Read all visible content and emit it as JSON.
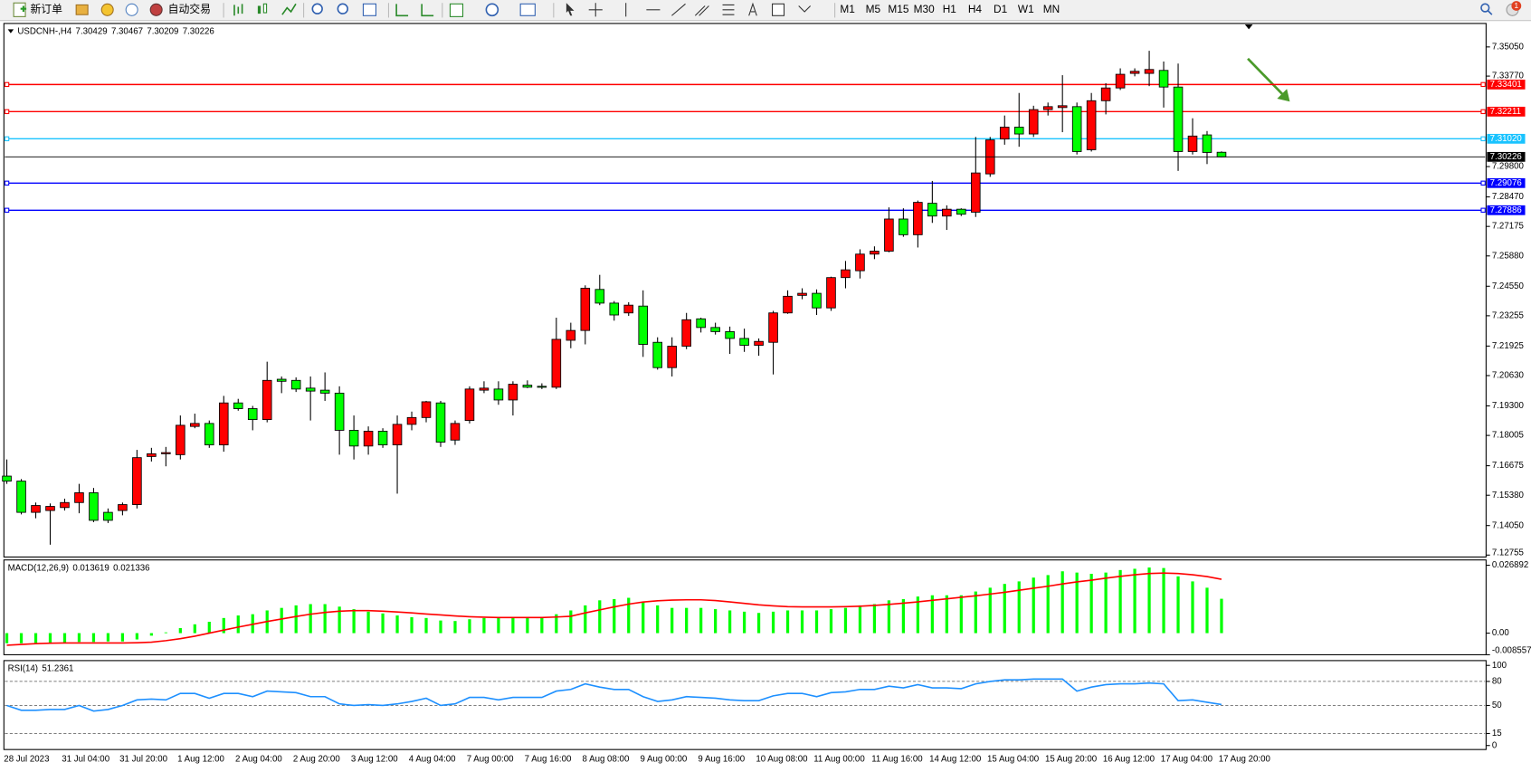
{
  "toolbar": {
    "new_order": "新订单",
    "auto_trading": "自动交易",
    "timeframes": [
      "M1",
      "M5",
      "M15",
      "M30",
      "H1",
      "H4",
      "D1",
      "W1",
      "MN"
    ],
    "notifications": 1
  },
  "chart_data": [
    {
      "type": "candlestick",
      "title": "USDCNH-,H4",
      "up_color": "#ff0000",
      "down_color": "#00ff00",
      "categories": [
        "28 Jul 2023",
        null,
        null,
        null,
        "31 Jul 04:00",
        null,
        null,
        null,
        "31 Jul 20:00",
        null,
        null,
        null,
        "1 Aug 12:00",
        null,
        null,
        null,
        "2 Aug 04:00",
        null,
        null,
        null,
        "2 Aug 20:00",
        null,
        null,
        null,
        "3 Aug 12:00",
        null,
        null,
        null,
        "4 Aug 04:00",
        null,
        null,
        null,
        "7 Aug 00:00",
        null,
        null,
        null,
        "7 Aug 16:00",
        null,
        null,
        null,
        "8 Aug 08:00",
        null,
        null,
        null,
        "9 Aug 00:00",
        null,
        null,
        null,
        "9 Aug 16:00",
        null,
        null,
        null,
        "10 Aug 08:00",
        null,
        null,
        null,
        "11 Aug 00:00",
        null,
        null,
        null,
        "11 Aug 16:00",
        null,
        null,
        null,
        "14 Aug 12:00",
        null,
        null,
        null,
        "15 Aug 04:00",
        null,
        null,
        null,
        "15 Aug 20:00",
        null,
        null,
        null,
        "16 Aug 12:00",
        null,
        null,
        null,
        "17 Aug 04:00",
        null,
        null,
        null,
        "17 Aug 20:00"
      ],
      "open": [
        7.1622,
        7.16,
        7.1463,
        7.1471,
        7.1484,
        7.1506,
        7.1549,
        7.1463,
        7.1471,
        7.1497,
        7.1708,
        7.172,
        7.1716,
        7.184,
        7.1853,
        7.1759,
        7.1943,
        7.1918,
        7.187,
        7.2047,
        7.2042,
        7.2008,
        7.1999,
        7.1986,
        7.1823,
        7.1754,
        7.1819,
        7.1759,
        7.1849,
        7.1879,
        7.1943,
        7.178,
        7.1866,
        7.1999,
        7.2004,
        7.1956,
        7.2021,
        7.2016,
        7.2012,
        7.2218,
        7.2261,
        7.2441,
        7.2381,
        7.2338,
        7.2368,
        7.2209,
        7.2098,
        7.2192,
        7.2312,
        7.2274,
        7.2256,
        7.2226,
        7.2196,
        7.2209,
        7.2338,
        7.2415,
        7.2424,
        7.236,
        7.2493,
        7.2523,
        7.2596,
        7.2609,
        7.275,
        7.2681,
        7.2819,
        7.2763,
        7.2793,
        7.278,
        7.2948,
        7.3101,
        7.3153,
        7.3123,
        7.323,
        7.3239,
        7.3243,
        7.3054,
        7.3269,
        7.3325,
        7.3389,
        7.3389,
        7.3402,
        7.3329,
        7.3046,
        7.3119,
        7.30429
      ],
      "high": [
        7.1695,
        7.1609,
        7.1506,
        7.1502,
        7.1523,
        7.1588,
        7.157,
        7.148,
        7.1506,
        7.1737,
        7.1746,
        7.175,
        7.1888,
        7.1896,
        7.1866,
        7.1974,
        7.1961,
        7.193,
        7.2124,
        7.2059,
        7.2055,
        7.2059,
        7.2077,
        7.2016,
        7.1888,
        7.184,
        7.1832,
        7.1888,
        7.1905,
        7.1952,
        7.1952,
        7.1866,
        7.2016,
        7.2038,
        7.2038,
        7.2038,
        7.2042,
        7.2029,
        7.2317,
        7.2295,
        7.2459,
        7.2505,
        7.239,
        7.2385,
        7.2437,
        7.2231,
        7.2231,
        7.2338,
        7.2317,
        7.2295,
        7.2278,
        7.2269,
        7.2226,
        7.2347,
        7.2437,
        7.2446,
        7.2441,
        7.2497,
        7.2566,
        7.2617,
        7.263,
        7.2801,
        7.2797,
        7.2831,
        7.2917,
        7.281,
        7.2797,
        7.311,
        7.311,
        7.3204,
        7.3303,
        7.3247,
        7.3261,
        7.3381,
        7.3261,
        7.3303,
        7.3346,
        7.3411,
        7.3411,
        7.3488,
        7.3441,
        7.3432,
        7.3192,
        7.3136,
        7.30467
      ],
      "low": [
        7.1588,
        7.1454,
        7.1437,
        7.1321,
        7.1471,
        7.1459,
        7.142,
        7.1416,
        7.145,
        7.148,
        7.1686,
        7.1665,
        7.1695,
        7.1832,
        7.1746,
        7.1729,
        7.1909,
        7.1823,
        7.1858,
        7.1986,
        7.1991,
        7.1866,
        7.1952,
        7.1716,
        7.1695,
        7.1716,
        7.1746,
        7.1545,
        7.1823,
        7.1858,
        7.175,
        7.1759,
        7.1853,
        7.1986,
        7.1935,
        7.1888,
        7.2008,
        7.2004,
        7.2004,
        7.2183,
        7.22,
        7.2372,
        7.2304,
        7.2325,
        7.2145,
        7.2089,
        7.2059,
        7.2179,
        7.2252,
        7.2243,
        7.2158,
        7.2167,
        7.215,
        7.2068,
        7.2334,
        7.2398,
        7.2329,
        7.2347,
        7.2446,
        7.2489,
        7.2574,
        7.2604,
        7.2672,
        7.2625,
        7.2733,
        7.2702,
        7.2763,
        7.2759,
        7.2935,
        7.3076,
        7.3067,
        7.311,
        7.3204,
        7.3131,
        7.3033,
        7.3046,
        7.3209,
        7.3316,
        7.3376,
        7.3333,
        7.3239,
        7.2961,
        7.3033,
        7.2991,
        7.30209
      ],
      "close": [
        7.16,
        7.1463,
        7.1493,
        7.1489,
        7.1506,
        7.1549,
        7.1428,
        7.1428,
        7.1497,
        7.1703,
        7.172,
        7.1725,
        7.1845,
        7.1853,
        7.1759,
        7.1943,
        7.1918,
        7.187,
        7.2042,
        7.2038,
        7.2004,
        7.1995,
        7.1986,
        7.1823,
        7.1754,
        7.1819,
        7.1759,
        7.1849,
        7.1879,
        7.1948,
        7.1771,
        7.1853,
        7.2004,
        7.2008,
        7.1956,
        7.2025,
        7.2012,
        7.2012,
        7.2222,
        7.2261,
        7.2446,
        7.2381,
        7.2329,
        7.2372,
        7.22,
        7.2098,
        7.2192,
        7.2308,
        7.2274,
        7.2256,
        7.2226,
        7.2196,
        7.2213,
        7.2338,
        7.2411,
        7.2424,
        7.236,
        7.2493,
        7.2527,
        7.2596,
        7.2609,
        7.275,
        7.2681,
        7.2823,
        7.2763,
        7.2793,
        7.2771,
        7.2952,
        7.3097,
        7.3153,
        7.3123,
        7.323,
        7.3243,
        7.3247,
        7.3046,
        7.3269,
        7.3325,
        7.3385,
        7.3398,
        7.3406,
        7.3329,
        7.3046,
        7.3114,
        7.3042,
        7.30226
      ],
      "ylim": [
        7.1267,
        7.3608
      ],
      "yticks": [
        {
          "value": 7.3505,
          "label": "7.35050"
        },
        {
          "value": 7.3377,
          "label": "7.33770"
        },
        {
          "value": 7.298,
          "label": "7.29800"
        },
        {
          "value": 7.2847,
          "label": "7.28470"
        },
        7.27175,
        {
          "value": 7.2588,
          "label": "7.25880"
        },
        {
          "value": 7.2455,
          "label": "7.24550"
        },
        7.23255,
        7.21925,
        {
          "value": 7.2063,
          "label": "7.20630"
        },
        {
          "value": 7.193,
          "label": "7.19300"
        },
        7.18005,
        7.16675,
        {
          "value": 7.1538,
          "label": "7.15380"
        },
        {
          "value": 7.1405,
          "label": "7.14050"
        },
        7.12755
      ],
      "hlines": [
        {
          "value": 7.33401,
          "color": "#ff0000"
        },
        {
          "value": 7.32211,
          "color": "#ff0000"
        },
        {
          "value": 7.3102,
          "label": "7.31020",
          "color": "#19c3ff"
        },
        {
          "value": 7.29076,
          "color": "#0000ff"
        },
        {
          "value": 7.27886,
          "color": "#0000ff"
        }
      ],
      "price_line_color": "#000000"
    },
    {
      "type": "bar",
      "title": "MACD(12,26,9)",
      "series": [
        {
          "style": "bar",
          "color": "#00ff00",
          "values": [
            -0.004,
            -0.004,
            -0.004,
            -0.004,
            -0.0038,
            -0.0035,
            -0.0035,
            -0.0033,
            -0.0033,
            -0.0025,
            -0.001,
            0.0003,
            0.002,
            0.0035,
            0.0045,
            0.006,
            0.007,
            0.0075,
            0.009,
            0.01,
            0.011,
            0.0115,
            0.0115,
            0.0105,
            0.0095,
            0.0085,
            0.0078,
            0.007,
            0.0063,
            0.006,
            0.005,
            0.0048,
            0.0055,
            0.006,
            0.006,
            0.006,
            0.006,
            0.006,
            0.0075,
            0.009,
            0.011,
            0.013,
            0.0135,
            0.014,
            0.0125,
            0.011,
            0.01,
            0.01,
            0.01,
            0.0095,
            0.009,
            0.0085,
            0.008,
            0.0085,
            0.009,
            0.009,
            0.009,
            0.0095,
            0.01,
            0.011,
            0.0115,
            0.013,
            0.0135,
            0.0145,
            0.015,
            0.015,
            0.015,
            0.0165,
            0.018,
            0.0195,
            0.0205,
            0.022,
            0.023,
            0.0245,
            0.024,
            0.0235,
            0.024,
            0.025,
            0.0255,
            0.026,
            0.0258,
            0.0225,
            0.0205,
            0.018,
            0.013619
          ]
        },
        {
          "style": "line",
          "color": "#ff0000",
          "values": [
            -0.0048,
            -0.0045,
            -0.0042,
            -0.004,
            -0.0039,
            -0.0039,
            -0.0039,
            -0.0039,
            -0.0039,
            -0.0038,
            -0.0036,
            -0.003,
            -0.0022,
            -0.0012,
            0,
            0.0012,
            0.0024,
            0.0035,
            0.0046,
            0.0056,
            0.0066,
            0.0075,
            0.0082,
            0.0087,
            0.0089,
            0.0089,
            0.0087,
            0.0084,
            0.008,
            0.0076,
            0.0072,
            0.0068,
            0.0065,
            0.0063,
            0.0062,
            0.0062,
            0.0062,
            0.0062,
            0.0064,
            0.0067,
            0.008,
            0.0092,
            0.0104,
            0.0115,
            0.0123,
            0.0128,
            0.0131,
            0.0132,
            0.0132,
            0.0129,
            0.0124,
            0.0118,
            0.0112,
            0.0108,
            0.0105,
            0.0104,
            0.0104,
            0.0104,
            0.0105,
            0.0107,
            0.011,
            0.0114,
            0.0119,
            0.0124,
            0.013,
            0.0136,
            0.0142,
            0.0148,
            0.0155,
            0.0162,
            0.017,
            0.0178,
            0.0186,
            0.0195,
            0.0203,
            0.021,
            0.0218,
            0.0225,
            0.0231,
            0.0236,
            0.0238,
            0.0236,
            0.0231,
            0.0224,
            0.021336
          ]
        }
      ],
      "ylim": [
        -0.008557,
        0.029
      ],
      "yticks": [
        0.026892,
        {
          "value": 0,
          "label": "0.00"
        },
        -0.008557
      ]
    },
    {
      "type": "line",
      "title": "RSI(14)",
      "series": [
        {
          "color": "#1e90ff",
          "values": [
            50,
            44,
            44,
            45,
            45,
            50,
            43,
            45,
            50,
            57,
            58,
            57,
            65,
            65,
            59,
            65,
            65,
            61,
            68,
            67,
            66,
            61,
            61,
            52,
            50,
            51,
            50,
            52,
            55,
            59,
            50,
            52,
            60,
            60,
            57,
            60,
            60,
            60,
            68,
            70,
            77,
            73,
            70,
            70,
            61,
            55,
            57,
            61,
            60,
            59,
            57,
            56,
            56,
            62,
            65,
            65,
            61,
            66,
            67,
            70,
            70,
            74,
            72,
            76,
            72,
            72,
            71,
            77,
            80,
            82,
            82,
            83,
            83,
            83,
            68,
            73,
            76,
            77,
            77,
            78,
            77,
            56,
            57,
            54,
            51.2361
          ]
        }
      ],
      "ylim": [
        -5,
        106
      ],
      "yticks": [
        100,
        80,
        50,
        15,
        0
      ],
      "levels": [
        80,
        50,
        15
      ]
    }
  ]
}
